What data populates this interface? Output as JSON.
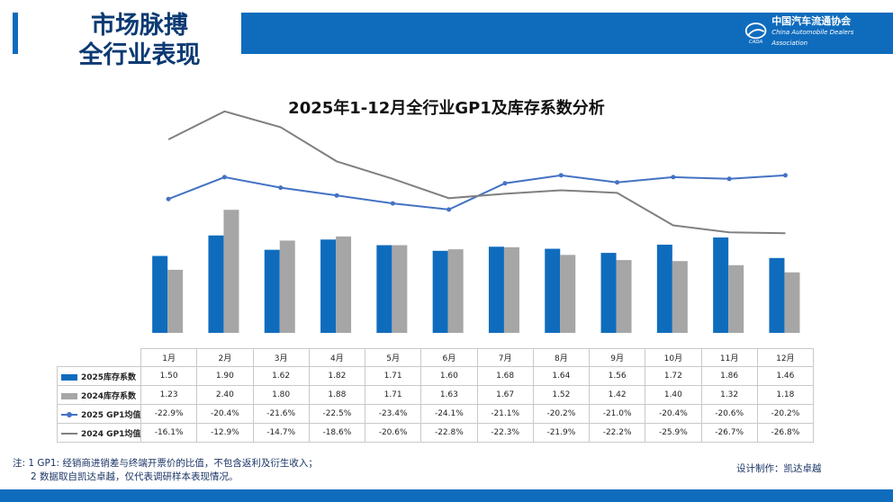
{
  "header": {
    "title_line1": "市场脉搏",
    "title_line2": "全行业表现"
  },
  "logo": {
    "cn": "中国汽车流通协会",
    "en": "China Automobile Dealers Association",
    "mark_text": "CADA"
  },
  "colors": {
    "brand_blue": "#0f6cbd",
    "bar_2025": "#0f6cbd",
    "bar_2024": "#a6a6a6",
    "line_2025": "#4472c4",
    "line_2024": "#808080"
  },
  "chart_data": {
    "type": "bar",
    "title": "2025年1-12月全行业GP1及库存系数分析",
    "categories": [
      "1月",
      "2月",
      "3月",
      "4月",
      "5月",
      "6月",
      "7月",
      "8月",
      "9月",
      "10月",
      "11月",
      "12月"
    ],
    "series": [
      {
        "name": "2025库存系数",
        "kind": "bar",
        "values": [
          1.5,
          1.9,
          1.62,
          1.82,
          1.71,
          1.6,
          1.68,
          1.64,
          1.56,
          1.72,
          1.86,
          1.46
        ],
        "labels": [
          "1.50",
          "1.90",
          "1.62",
          "1.82",
          "1.71",
          "1.60",
          "1.68",
          "1.64",
          "1.56",
          "1.72",
          "1.86",
          "1.46"
        ]
      },
      {
        "name": "2024库存系数",
        "kind": "bar",
        "values": [
          1.23,
          2.4,
          1.8,
          1.88,
          1.71,
          1.63,
          1.67,
          1.52,
          1.42,
          1.4,
          1.32,
          1.18
        ],
        "labels": [
          "1.23",
          "2.40",
          "1.80",
          "1.88",
          "1.71",
          "1.63",
          "1.67",
          "1.52",
          "1.42",
          "1.40",
          "1.32",
          "1.18"
        ]
      },
      {
        "name": "2025 GP1均值",
        "kind": "line",
        "marker": true,
        "values": [
          -22.9,
          -20.4,
          -21.6,
          -22.5,
          -23.4,
          -24.1,
          -21.1,
          -20.2,
          -21.0,
          -20.4,
          -20.6,
          -20.2
        ],
        "labels": [
          "-22.9%",
          "-20.4%",
          "-21.6%",
          "-22.5%",
          "-23.4%",
          "-24.1%",
          "-21.1%",
          "-20.2%",
          "-21.0%",
          "-20.4%",
          "-20.6%",
          "-20.2%"
        ]
      },
      {
        "name": "2024 GP1均值",
        "kind": "line",
        "marker": false,
        "values": [
          -16.1,
          -12.9,
          -14.7,
          -18.6,
          -20.6,
          -22.8,
          -22.3,
          -21.9,
          -22.2,
          -25.9,
          -26.7,
          -26.8
        ],
        "labels": [
          "-16.1%",
          "-12.9%",
          "-14.7%",
          "-18.6%",
          "-20.6%",
          "-22.8%",
          "-22.3%",
          "-21.9%",
          "-22.2%",
          "-25.9%",
          "-26.7%",
          "-26.8%"
        ]
      }
    ],
    "grid": false,
    "legend": "table"
  },
  "footer": {
    "note_line1": "注: 1 GP1: 经销商进销差与终端开票价的比值，不包含返利及衍生收入；",
    "note_line2": "2 数据取自凯达卓越，仅代表调研样本表现情况。",
    "design": "设计制作：凯达卓越"
  }
}
